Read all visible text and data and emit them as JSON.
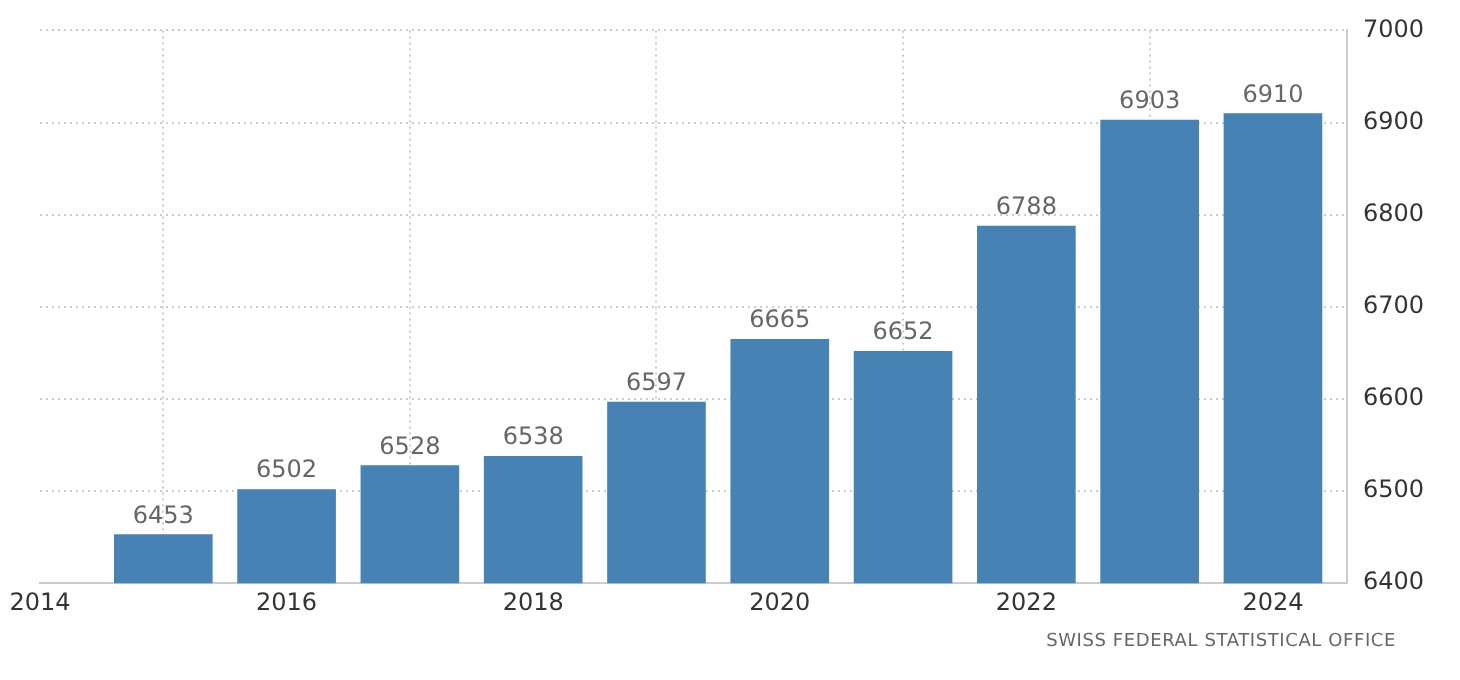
{
  "chart_data": {
    "type": "bar",
    "x": [
      2015,
      2016,
      2017,
      2018,
      2019,
      2020,
      2021,
      2022,
      2023,
      2024
    ],
    "values": [
      6453,
      6502,
      6528,
      6538,
      6597,
      6665,
      6652,
      6788,
      6903,
      6910
    ],
    "color": "#4682b4",
    "xlim": [
      2014,
      2024.6
    ],
    "xticks": [
      2014,
      2016,
      2018,
      2020,
      2022,
      2024
    ],
    "ylim": [
      6400,
      7000
    ],
    "yticks": [
      6400,
      6500,
      6600,
      6700,
      6800,
      6900,
      7000
    ],
    "grid": true,
    "data_labels": true,
    "legend": false,
    "annotations": [
      "SWISS FEDERAL STATISTICAL OFFICE"
    ]
  }
}
